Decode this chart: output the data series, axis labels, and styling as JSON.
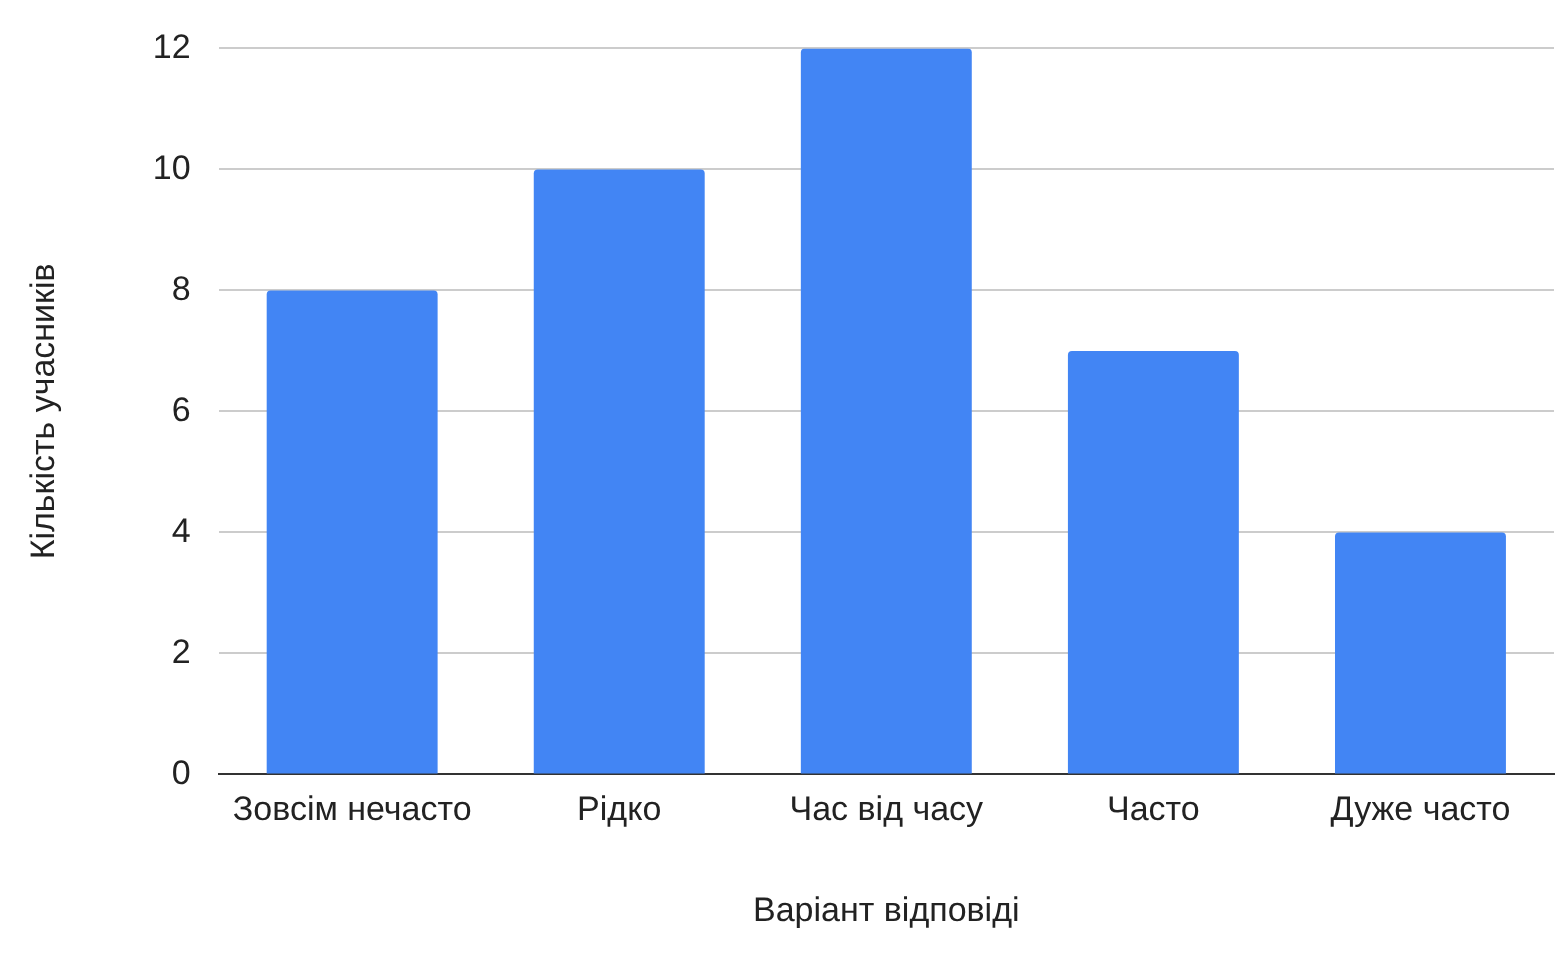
{
  "chart_data": {
    "type": "bar",
    "xlabel": "Варіант відповіді",
    "ylabel": "Кількість учасників",
    "categories": [
      "Зовсім нечасто",
      "Рідко",
      "Час від часу",
      "Часто",
      "Дуже часто"
    ],
    "values": [
      8,
      10,
      12,
      7,
      4
    ],
    "color": "#4285f4",
    "ylim": [
      0,
      12
    ],
    "yticks": [
      0,
      2,
      4,
      6,
      8,
      10,
      12
    ],
    "grid": "y",
    "legend": false
  }
}
